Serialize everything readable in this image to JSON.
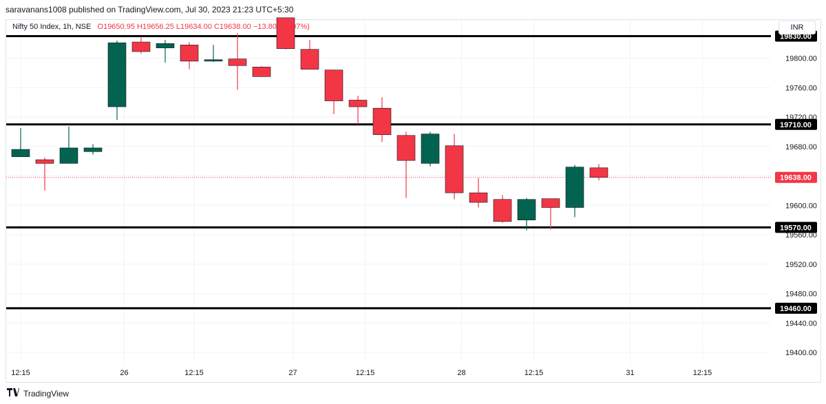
{
  "header": {
    "attribution": "saravanans1008 published on TradingView.com, Jul 30, 2023 21:23 UTC+5:30"
  },
  "legend": {
    "symbol": "Nifty 50 Index, 1h, NSE",
    "open": "O19650.95",
    "high": "H19656.25",
    "low": "L19634.00",
    "close": "C19638.00",
    "change": "−13.80 (−0.07%)"
  },
  "currency": "INR",
  "footer": {
    "brand": "TradingView",
    "logo_icon": "tradingview-logo-icon"
  },
  "colors": {
    "up": "#026450",
    "down": "#f23645",
    "level_line": "#000000",
    "last_price": "#f23645",
    "grid": "#f0f3fa"
  },
  "chart_data": {
    "type": "candlestick",
    "symbol": "Nifty 50 Index",
    "interval": "1h",
    "exchange": "NSE",
    "y_axis": {
      "ylim": [
        19386,
        19852
      ],
      "ticks": [
        19400,
        19440,
        19480,
        19520,
        19560,
        19600,
        19640,
        19680,
        19720,
        19760,
        19800
      ],
      "tick_labels": [
        "19400.00",
        "19440.00",
        "19480.00",
        "19520.00",
        "19560.00",
        "19600.00",
        "19640.00",
        "19680.00",
        "19720.00",
        "19760.00",
        "19800.00"
      ]
    },
    "x_axis": {
      "tick_labels": [
        "12:15",
        "26",
        "12:15",
        "27",
        "12:15",
        "28",
        "12:15",
        "31",
        "12:15"
      ],
      "tick_bar_index": [
        0,
        4.3,
        7.2,
        11.3,
        14.3,
        18.3,
        21.3,
        25.3,
        28.3
      ]
    },
    "candles": [
      {
        "o": 19666,
        "h": 19705,
        "l": 19666,
        "c": 19676
      },
      {
        "o": 19662,
        "h": 19665,
        "l": 19620,
        "c": 19657
      },
      {
        "o": 19657,
        "h": 19707,
        "l": 19657,
        "c": 19678
      },
      {
        "o": 19673,
        "h": 19683,
        "l": 19669,
        "c": 19678
      },
      {
        "o": 19734,
        "h": 19824,
        "l": 19716,
        "c": 19821
      },
      {
        "o": 19822,
        "h": 19828,
        "l": 19806,
        "c": 19809
      },
      {
        "o": 19814,
        "h": 19825,
        "l": 19794,
        "c": 19820
      },
      {
        "o": 19818,
        "h": 19822,
        "l": 19785,
        "c": 19796
      },
      {
        "o": 19796,
        "h": 19818,
        "l": 19795,
        "c": 19798
      },
      {
        "o": 19799,
        "h": 19834,
        "l": 19757,
        "c": 19790
      },
      {
        "o": 19788,
        "h": 19789,
        "l": 19778,
        "c": 19775
      },
      {
        "o": 19855,
        "h": 19855,
        "l": 19812,
        "c": 19813
      },
      {
        "o": 19812,
        "h": 19825,
        "l": 19786,
        "c": 19785
      },
      {
        "o": 19784,
        "h": 19784,
        "l": 19724,
        "c": 19742
      },
      {
        "o": 19743,
        "h": 19749,
        "l": 19710,
        "c": 19734
      },
      {
        "o": 19732,
        "h": 19747,
        "l": 19686,
        "c": 19696
      },
      {
        "o": 19695,
        "h": 19700,
        "l": 19610,
        "c": 19661
      },
      {
        "o": 19657,
        "h": 19700,
        "l": 19653,
        "c": 19697
      },
      {
        "o": 19681,
        "h": 19697,
        "l": 19608,
        "c": 19617
      },
      {
        "o": 19617,
        "h": 19637,
        "l": 19597,
        "c": 19604
      },
      {
        "o": 19608,
        "h": 19614,
        "l": 19576,
        "c": 19578
      },
      {
        "o": 19580,
        "h": 19610,
        "l": 19566,
        "c": 19608
      },
      {
        "o": 19609,
        "h": 19609,
        "l": 19567,
        "c": 19597
      },
      {
        "o": 19597,
        "h": 19655,
        "l": 19584,
        "c": 19652
      },
      {
        "o": 19651,
        "h": 19656,
        "l": 19634,
        "c": 19638
      }
    ],
    "horizontal_levels": [
      {
        "value": 19830,
        "label": "19830.00"
      },
      {
        "value": 19710,
        "label": "19710.00"
      },
      {
        "value": 19570,
        "label": "19570.00"
      },
      {
        "value": 19460,
        "label": "19460.00"
      }
    ],
    "last_price": {
      "value": 19638,
      "label": "19638.00"
    }
  }
}
